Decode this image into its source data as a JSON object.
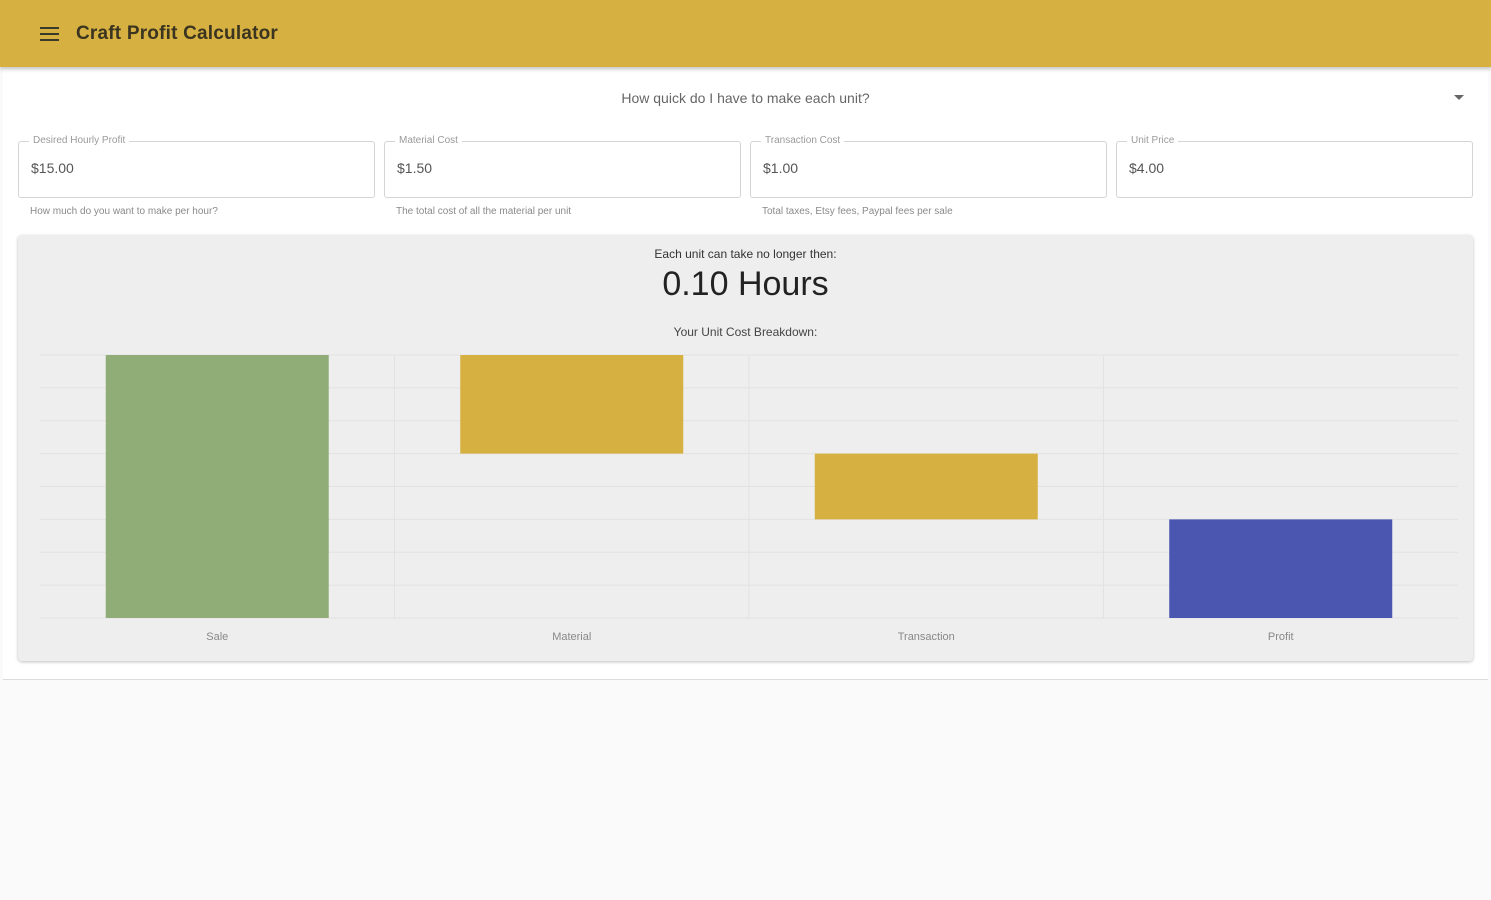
{
  "app": {
    "title": "Craft Profit Calculator",
    "menu_icon": "hamburger-menu-icon",
    "accent": "#d6b040"
  },
  "question": {
    "label": "How quick do I have to make each unit?"
  },
  "fields": [
    {
      "label": "Desired Hourly Profit",
      "value": "$15.00",
      "help": "How much do you want to make per hour?"
    },
    {
      "label": "Material Cost",
      "value": "$1.50",
      "help": "The total cost of all the material per unit"
    },
    {
      "label": "Transaction Cost",
      "value": "$1.00",
      "help": "Total taxes, Etsy fees, Paypal fees per sale"
    },
    {
      "label": "Unit Price",
      "value": "$4.00",
      "help": ""
    }
  ],
  "result": {
    "label": "Each unit can take no longer then:",
    "value": "0.10 Hours",
    "breakdown_label": "Your Unit Cost Breakdown:"
  },
  "chart_data": {
    "type": "bar",
    "subtype": "waterfall",
    "categories": [
      "Sale",
      "Material",
      "Transaction",
      "Profit"
    ],
    "series": [
      {
        "values": [
          [
            0,
            4.0
          ],
          [
            2.5,
            4.0
          ],
          [
            1.5,
            2.5
          ],
          [
            0,
            1.5
          ]
        ]
      }
    ],
    "colors": [
      "#90ad78",
      "#d6b040",
      "#d6b040",
      "#4b56b0"
    ],
    "ylim": [
      0,
      4
    ],
    "grid": true
  }
}
